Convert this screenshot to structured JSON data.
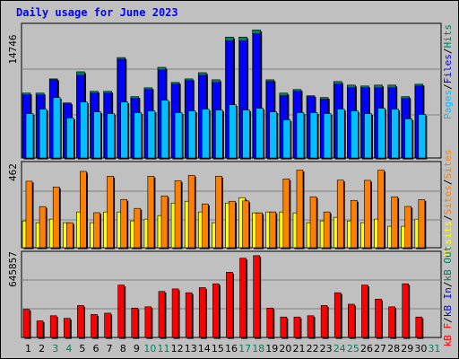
{
  "title": "Daily usage for June 2023",
  "colors": {
    "background": "#c0c0c0",
    "hits": "#00805c",
    "files": "#0000ff",
    "pages": "#00c0ff",
    "visits": "#ffff00",
    "sites": "#ff8000",
    "kbytes": "#ff0000",
    "weekend_label": "#00805c"
  },
  "chart_data": [
    {
      "type": "bar",
      "panel": "hits-files-pages",
      "categories": [
        "1",
        "2",
        "3",
        "4",
        "5",
        "6",
        "7",
        "8",
        "9",
        "10",
        "11",
        "12",
        "13",
        "14",
        "15",
        "16",
        "17",
        "18",
        "19",
        "20",
        "21",
        "22",
        "23",
        "24",
        "25",
        "26",
        "27",
        "28",
        "29",
        "30",
        "31"
      ],
      "weekend_days": [
        "3",
        "4",
        "10",
        "11",
        "17",
        "18",
        "24",
        "25",
        "31"
      ],
      "ymax_label": "14746",
      "ylim": [
        0,
        14746
      ],
      "legend": [
        "Pages",
        "/",
        "Files",
        "/",
        "Hits"
      ],
      "series": [
        {
          "name": "Hits",
          "values": [
            7300,
            7300,
            8900,
            6200,
            9700,
            7500,
            7500,
            11300,
            6900,
            7900,
            10200,
            8500,
            8900,
            9600,
            8800,
            13600,
            13600,
            14400,
            8800,
            7300,
            7700,
            7000,
            6800,
            8600,
            8200,
            8100,
            8200,
            8200,
            6900,
            8300,
            0
          ]
        },
        {
          "name": "Files",
          "values": [
            7100,
            7100,
            8800,
            6100,
            9300,
            7300,
            7300,
            11100,
            6700,
            7700,
            9900,
            8300,
            8700,
            9300,
            8500,
            13200,
            13200,
            14000,
            8600,
            7000,
            7500,
            6900,
            6600,
            8300,
            7900,
            7900,
            7900,
            7900,
            6700,
            8100,
            0
          ]
        },
        {
          "name": "Pages",
          "values": [
            5000,
            5500,
            6800,
            4500,
            6300,
            5200,
            5000,
            6300,
            5100,
            5300,
            6500,
            5100,
            5300,
            5500,
            5400,
            6000,
            5400,
            5600,
            5200,
            4300,
            5100,
            5100,
            5000,
            5500,
            5300,
            5000,
            5600,
            5500,
            4400,
            4900,
            0
          ]
        }
      ]
    },
    {
      "type": "bar",
      "panel": "visits-sites",
      "categories": [
        "1",
        "2",
        "3",
        "4",
        "5",
        "6",
        "7",
        "8",
        "9",
        "10",
        "11",
        "12",
        "13",
        "14",
        "15",
        "16",
        "17",
        "18",
        "19",
        "20",
        "21",
        "22",
        "23",
        "24",
        "25",
        "26",
        "27",
        "28",
        "29",
        "30",
        "31"
      ],
      "ymax_label": "462",
      "ylim": [
        0,
        462
      ],
      "legend": [
        "Visits",
        "/",
        "Sites",
        "/",
        "Sites"
      ],
      "series": [
        {
          "name": "Visits",
          "values": [
            150,
            140,
            160,
            140,
            200,
            140,
            200,
            200,
            150,
            160,
            180,
            250,
            260,
            200,
            140,
            250,
            280,
            195,
            200,
            200,
            195,
            140,
            150,
            170,
            150,
            140,
            160,
            120,
            120,
            160,
            0
          ]
        },
        {
          "name": "Sites",
          "values": [
            372,
            230,
            340,
            140,
            427,
            196,
            400,
            270,
            220,
            400,
            290,
            375,
            405,
            245,
            400,
            260,
            262,
            195,
            200,
            385,
            434,
            285,
            200,
            378,
            265,
            377,
            434,
            285,
            231,
            269,
            0
          ]
        }
      ]
    },
    {
      "type": "bar",
      "panel": "kbytes",
      "categories": [
        "1",
        "2",
        "3",
        "4",
        "5",
        "6",
        "7",
        "8",
        "9",
        "10",
        "11",
        "12",
        "13",
        "14",
        "15",
        "16",
        "17",
        "18",
        "19",
        "20",
        "21",
        "22",
        "23",
        "24",
        "25",
        "26",
        "27",
        "28",
        "29",
        "30",
        "31"
      ],
      "ymax_label": "645857",
      "ylim": [
        0,
        645857
      ],
      "legend": [
        "kB F",
        "/",
        "kB In",
        "/",
        "kB Out"
      ],
      "series": [
        {
          "name": "kB F",
          "values": [
            220000,
            130000,
            170000,
            150000,
            250000,
            180000,
            190000,
            410000,
            230000,
            240000,
            360000,
            380000,
            350000,
            390000,
            420000,
            510000,
            620000,
            640000,
            230000,
            160000,
            160000,
            170000,
            250000,
            350000,
            260000,
            410000,
            300000,
            240000,
            420000,
            160000,
            0
          ]
        }
      ]
    }
  ]
}
